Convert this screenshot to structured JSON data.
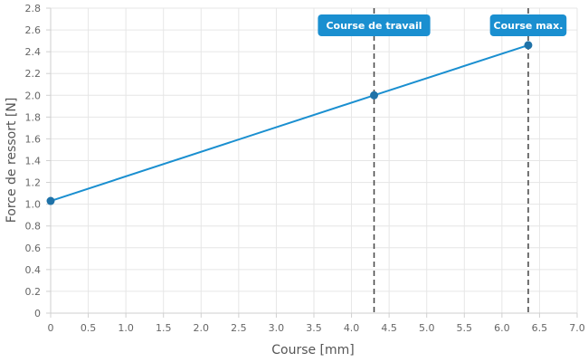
{
  "chart_data": {
    "type": "line",
    "xlabel": "Course [mm]",
    "ylabel": "Force de ressort [N]",
    "xlim": [
      0,
      7.0
    ],
    "ylim": [
      0,
      2.8
    ],
    "x_ticks": [
      "0",
      "0.5",
      "1.0",
      "1.5",
      "2.0",
      "2.5",
      "3.0",
      "3.5",
      "4.0",
      "4.5",
      "5.0",
      "5.5",
      "6.0",
      "6.5",
      "7.0"
    ],
    "y_ticks": [
      "0",
      "0.2",
      "0.4",
      "0.6",
      "0.8",
      "1.0",
      "1.2",
      "1.4",
      "1.6",
      "1.8",
      "2.0",
      "2.2",
      "2.4",
      "2.6",
      "2.8"
    ],
    "grid": true,
    "series": [
      {
        "color": "#1a8fd0",
        "x": [
          0,
          4.3,
          6.35
        ],
        "y": [
          1.03,
          2.0,
          2.46
        ]
      }
    ],
    "annotations": [
      {
        "label": "Course de travail",
        "x": 4.3,
        "color": "#1a8fd0",
        "line_color": "#444444"
      },
      {
        "label": "Course max.",
        "x": 6.35,
        "color": "#1a8fd0",
        "line_color": "#444444"
      }
    ]
  }
}
